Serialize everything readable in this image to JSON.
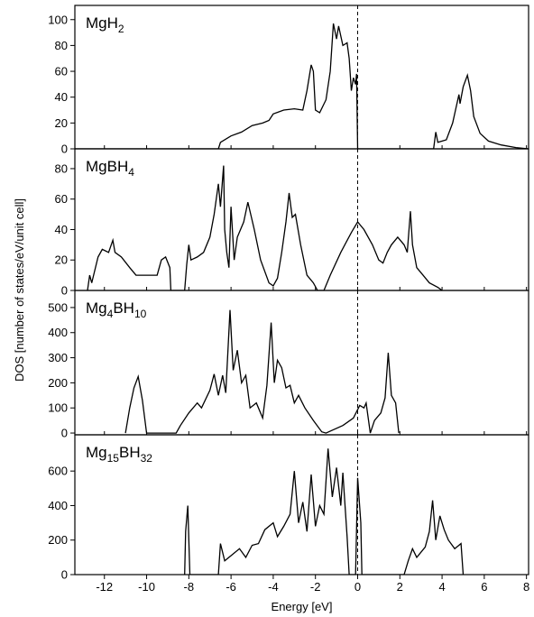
{
  "chart_data": [
    {
      "type": "line",
      "title": "MgH2",
      "color": "#000000",
      "fermi_level": 0,
      "xlim": [
        -13.4,
        8.1
      ],
      "xticks": [
        -12,
        -10,
        -8,
        -6,
        -4,
        -2,
        0,
        2,
        4,
        6,
        8
      ],
      "ylim": [
        0,
        111
      ],
      "yticks": [
        0,
        20,
        40,
        60,
        80,
        100
      ],
      "ylabel": "DOS [number of states/eV/unit cell]",
      "x": [
        -13.4,
        -6.6,
        -6.5,
        -6,
        -5.5,
        -5,
        -4.5,
        -4.2,
        -4,
        -3.5,
        -3,
        -2.6,
        -2.4,
        -2.2,
        -2.1,
        -2.0,
        -1.8,
        -1.5,
        -1.3,
        -1.15,
        -1.0,
        -0.9,
        -0.7,
        -0.5,
        -0.4,
        -0.3,
        -0.2,
        -0.1,
        -0.05,
        0.0,
        3.6,
        3.7,
        3.8,
        4.2,
        4.5,
        4.8,
        4.85,
        5.0,
        5.2,
        5.35,
        5.5,
        5.8,
        6.2,
        6.8,
        7.5,
        8.1
      ],
      "values": [
        0,
        0,
        5,
        10,
        13,
        18,
        20,
        22,
        27,
        30,
        31,
        30,
        45,
        65,
        60,
        30,
        28,
        38,
        60,
        97,
        85,
        95,
        80,
        82,
        70,
        45,
        55,
        50,
        58,
        0,
        0,
        13,
        5,
        7,
        20,
        42,
        35,
        48,
        57,
        45,
        25,
        12,
        6,
        3,
        1,
        0
      ]
    },
    {
      "type": "line",
      "title": "MgBH4",
      "color": "#000000",
      "fermi_level": 0,
      "xlim": [
        -13.4,
        8.1
      ],
      "xticks": [
        -12,
        -10,
        -8,
        -6,
        -4,
        -2,
        0,
        2,
        4,
        6,
        8
      ],
      "ylim": [
        0,
        93
      ],
      "yticks": [
        0,
        20,
        40,
        60,
        80
      ],
      "x": [
        -12.8,
        -12.7,
        -12.6,
        -12.3,
        -12.1,
        -11.8,
        -11.6,
        -11.5,
        -11.2,
        -10.8,
        -10.5,
        -9.5,
        -9.3,
        -9.1,
        -8.9,
        -8.85,
        -8.2,
        -8.1,
        -8.0,
        -7.9,
        -7.6,
        -7.3,
        -7.0,
        -6.8,
        -6.6,
        -6.5,
        -6.35,
        -6.3,
        -6.2,
        -6.1,
        -6.0,
        -5.85,
        -5.7,
        -5.4,
        -5.2,
        -4.9,
        -4.6,
        -4.2,
        -4.0,
        -3.8,
        -3.6,
        -3.4,
        -3.25,
        -3.1,
        -2.95,
        -2.7,
        -2.4,
        -2.1,
        -1.9,
        -1.6,
        -1.3,
        -0.8,
        -0.3,
        0.0,
        0.3,
        0.7,
        1.0,
        1.2,
        1.4,
        1.6,
        1.9,
        2.2,
        2.35,
        2.5,
        2.6,
        2.8,
        3.1,
        3.4,
        3.8,
        4.0
      ],
      "values": [
        0,
        10,
        5,
        22,
        27,
        25,
        33,
        25,
        22,
        15,
        10,
        10,
        20,
        22,
        15,
        0,
        0,
        17,
        30,
        20,
        22,
        25,
        35,
        50,
        70,
        55,
        82,
        40,
        25,
        15,
        55,
        20,
        35,
        45,
        58,
        40,
        20,
        5,
        3,
        8,
        25,
        45,
        64,
        48,
        50,
        30,
        10,
        5,
        0,
        0,
        10,
        25,
        38,
        45,
        40,
        30,
        20,
        18,
        25,
        30,
        35,
        30,
        25,
        52,
        30,
        15,
        10,
        5,
        2,
        0
      ]
    },
    {
      "type": "line",
      "title": "Mg4BH10",
      "color": "#000000",
      "fermi_level": 0,
      "xlim": [
        -13.4,
        8.1
      ],
      "xticks": [
        -12,
        -10,
        -8,
        -6,
        -4,
        -2,
        0,
        2,
        4,
        6,
        8
      ],
      "ylim": [
        -7,
        568
      ],
      "yticks": [
        0,
        100,
        200,
        300,
        400,
        500
      ],
      "x": [
        -11,
        -10.8,
        -10.6,
        -10.4,
        -10.2,
        -10.0,
        -8.6,
        -8.4,
        -8.0,
        -7.6,
        -7.4,
        -7.0,
        -6.8,
        -6.6,
        -6.4,
        -6.25,
        -6.05,
        -5.9,
        -5.7,
        -5.5,
        -5.3,
        -5.1,
        -4.8,
        -4.5,
        -4.3,
        -4.1,
        -3.95,
        -3.8,
        -3.6,
        -3.4,
        -3.2,
        -3.0,
        -2.8,
        -2.5,
        -2.1,
        -1.7,
        -1.5,
        -0.7,
        -0.2,
        0.1,
        0.3,
        0.4,
        0.6,
        0.8,
        1.1,
        1.3,
        1.45,
        1.6,
        1.8,
        1.95
      ],
      "values": [
        0,
        100,
        180,
        225,
        130,
        0,
        0,
        30,
        80,
        120,
        100,
        170,
        235,
        150,
        230,
        160,
        490,
        250,
        330,
        200,
        230,
        100,
        120,
        60,
        190,
        440,
        200,
        290,
        260,
        180,
        190,
        120,
        150,
        100,
        50,
        5,
        0,
        30,
        60,
        110,
        100,
        120,
        0,
        50,
        80,
        140,
        320,
        150,
        120,
        0
      ]
    },
    {
      "type": "line",
      "title": "Mg15BH32",
      "color": "#000000",
      "fermi_level": 0,
      "xlim": [
        -13.4,
        8.1
      ],
      "xticks": [
        -12,
        -10,
        -8,
        -6,
        -4,
        -2,
        0,
        2,
        4,
        6,
        8
      ],
      "ylim": [
        0,
        810
      ],
      "yticks": [
        0,
        200,
        400,
        600
      ],
      "xlabel": "Energy [eV]",
      "x": [
        -8.2,
        -8.15,
        -8.05,
        -7.95,
        -6.6,
        -6.5,
        -6.3,
        -6.0,
        -5.6,
        -5.3,
        -5.0,
        -4.7,
        -4.4,
        -4.0,
        -3.8,
        -3.5,
        -3.2,
        -3.0,
        -2.8,
        -2.6,
        -2.4,
        -2.2,
        -2.0,
        -1.8,
        -1.6,
        -1.4,
        -1.2,
        -1.0,
        -0.8,
        -0.7,
        -0.5,
        -0.4,
        -0.1,
        0.0,
        0.15,
        0.2,
        2.2,
        2.4,
        2.6,
        2.8,
        3.2,
        3.4,
        3.55,
        3.7,
        3.9,
        4.1,
        4.3,
        4.6,
        4.9,
        5.0
      ],
      "values": [
        0,
        250,
        400,
        0,
        0,
        180,
        80,
        110,
        150,
        100,
        170,
        180,
        260,
        300,
        220,
        280,
        350,
        600,
        300,
        420,
        250,
        580,
        280,
        400,
        350,
        730,
        450,
        620,
        400,
        590,
        220,
        0,
        0,
        560,
        300,
        0,
        0,
        80,
        150,
        100,
        160,
        250,
        430,
        200,
        340,
        260,
        200,
        150,
        180,
        0
      ]
    }
  ]
}
